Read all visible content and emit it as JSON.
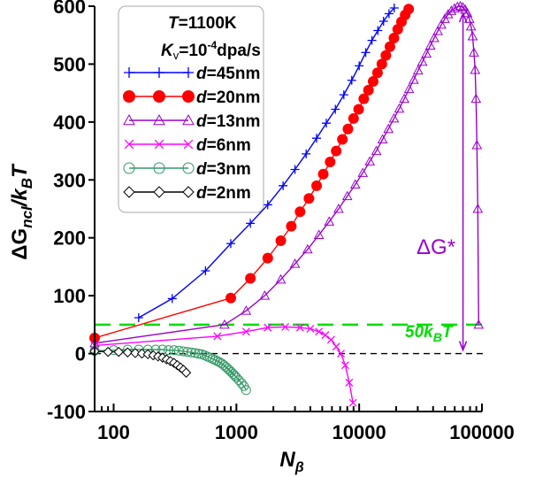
{
  "chart_data": {
    "type": "line",
    "title": "",
    "xlabel": "N",
    "xlabel_sub": "β",
    "ylabel_parts": {
      "delta": "ΔG",
      "sub": "ncl",
      "slash": "/k",
      "sub2": "B",
      "T": "T"
    },
    "xscale": "log",
    "xlim": [
      70,
      100000
    ],
    "ylim": [
      -100,
      600
    ],
    "xticks": [
      100,
      1000,
      10000,
      100000
    ],
    "xtick_labels": [
      "100",
      "1000",
      "10000",
      "100000"
    ],
    "yticks": [
      -100,
      0,
      100,
      200,
      300,
      400,
      500,
      600
    ],
    "ytick_labels": [
      "-100",
      "0",
      "100",
      "200",
      "300",
      "400",
      "500",
      "600"
    ],
    "grid": false,
    "legend": {
      "placement": "top-left",
      "header_lines": [
        "T=1100K",
        "Kv=10^-4dpa/s"
      ],
      "header": {
        "t_var": "T",
        "t_val": "=1100K",
        "k_var": "K",
        "k_sub": "v",
        "k_val": "=10",
        "k_exp": "-4",
        "k_unit": "dpa/s"
      },
      "entries": [
        {
          "var": "d",
          "val": "=45nm"
        },
        {
          "var": "d",
          "val": "=20nm"
        },
        {
          "var": "d",
          "val": "=13nm"
        },
        {
          "var": "d",
          "val": "=6nm"
        },
        {
          "var": "d",
          "val": "=3nm"
        },
        {
          "var": "d",
          "val": "=2nm"
        }
      ]
    },
    "series": [
      {
        "name": "d=45nm",
        "color": "#0000ff",
        "marker": "plus",
        "x": [
          160,
          300,
          560,
          900,
          1300,
          1800,
          2400,
          3000,
          3700,
          4500,
          5400,
          6400,
          7500,
          8700,
          10000,
          11300,
          12700,
          14200,
          15800,
          17500,
          19300
        ],
        "y": [
          62,
          95,
          143,
          190,
          225,
          257,
          290,
          318,
          345,
          372,
          398,
          422,
          447,
          472,
          497,
          520,
          541,
          558,
          574,
          587,
          597
        ]
      },
      {
        "name": "d=20nm",
        "color": "#ff0000",
        "marker": "circle",
        "x": [
          70,
          900,
          1300,
          1800,
          2300,
          2800,
          3300,
          3900,
          4500,
          5100,
          5800,
          6500,
          7300,
          8100,
          9000,
          9900,
          10900,
          11900,
          13000,
          14100,
          15300,
          16500,
          17800,
          19200,
          20600,
          22100,
          23700,
          25300
        ],
        "y": [
          27,
          96,
          130,
          165,
          195,
          220,
          245,
          268,
          290,
          310,
          331,
          350,
          370,
          388,
          406,
          422,
          440,
          455,
          470,
          485,
          500,
          515,
          530,
          545,
          560,
          573,
          585,
          595
        ]
      },
      {
        "name": "d=13nm",
        "color": "#9900cc",
        "marker": "triangle",
        "x": [
          70,
          800,
          1200,
          1700,
          2300,
          3000,
          3800,
          4700,
          5700,
          6800,
          8000,
          9300,
          10700,
          12200,
          13800,
          15500,
          17300,
          19200,
          21200,
          23300,
          25500,
          27800,
          30200,
          32700,
          35300,
          38000,
          40800,
          43700,
          46700,
          49800,
          53000,
          56300,
          59700,
          63200,
          66700,
          70000,
          73000,
          76000,
          79000,
          81500,
          84000,
          86000,
          88000,
          89500,
          91000,
          92500,
          94000
        ],
        "y": [
          18,
          50,
          74,
          100,
          128,
          155,
          180,
          205,
          228,
          250,
          272,
          292,
          312,
          332,
          350,
          370,
          388,
          406,
          423,
          440,
          457,
          473,
          489,
          504,
          518,
          532,
          545,
          557,
          568,
          578,
          586,
          592,
          596,
          599,
          600,
          598,
          594,
          588,
          578,
          565,
          548,
          520,
          490,
          440,
          360,
          250,
          50
        ]
      },
      {
        "name": "d=6nm",
        "color": "#ff00ff",
        "marker": "x",
        "x": [
          70,
          700,
          1200,
          1800,
          2500,
          3300,
          4000,
          4700,
          5300,
          5900,
          6500,
          7100,
          7700,
          8300,
          8900
        ],
        "y": [
          14,
          30,
          38,
          45,
          46,
          45,
          43,
          38,
          32,
          24,
          12,
          0,
          -20,
          -50,
          -85
        ]
      },
      {
        "name": "d=3nm",
        "color": "#339966",
        "marker": "circle-open",
        "x": [
          70,
          100,
          130,
          160,
          190,
          220,
          250,
          280,
          310,
          340,
          370,
          400,
          430,
          460,
          490,
          520,
          550,
          580,
          610,
          640,
          670,
          700,
          730,
          760,
          790,
          820,
          850,
          880,
          910,
          940,
          970,
          1000,
          1050,
          1100,
          1150,
          1200
        ],
        "y": [
          5,
          6,
          7,
          7,
          7,
          7,
          7,
          6,
          6,
          5,
          4,
          3,
          2,
          1,
          0,
          -1,
          -3,
          -5,
          -7,
          -9,
          -11,
          -13,
          -15,
          -17,
          -20,
          -23,
          -26,
          -29,
          -32,
          -35,
          -38,
          -41,
          -46,
          -51,
          -56,
          -63
        ]
      },
      {
        "name": "d=2nm",
        "color": "#000000",
        "marker": "diamond",
        "x": [
          70,
          90,
          110,
          130,
          150,
          170,
          190,
          210,
          230,
          250,
          270,
          290,
          310,
          330,
          350,
          370,
          390
        ],
        "y": [
          4,
          3,
          3,
          2,
          1,
          0,
          -1,
          -3,
          -5,
          -7,
          -10,
          -13,
          -16,
          -20,
          -24,
          -28,
          -33
        ]
      }
    ],
    "reference_lines": [
      {
        "name": "50kBT",
        "y": 50,
        "color": "#00dd00",
        "style": "dashed"
      },
      {
        "name": "zero",
        "y": 0,
        "color": "#000000",
        "style": "dashed"
      }
    ],
    "annotations": [
      {
        "name": "50kBT-label",
        "text": {
          "main": "50k",
          "sub": "B",
          "tail": "T"
        },
        "x": 28000,
        "y": 75,
        "color": "#00dd00"
      },
      {
        "name": "delta-g-star-label",
        "text": {
          "main": "ΔG*"
        },
        "x": 33000,
        "y": 238,
        "color": "#9900cc"
      },
      {
        "name": "delta-g-star-arrow",
        "x": 66700,
        "y_from": 0,
        "y_to": 600,
        "color": "#9900cc"
      }
    ]
  }
}
